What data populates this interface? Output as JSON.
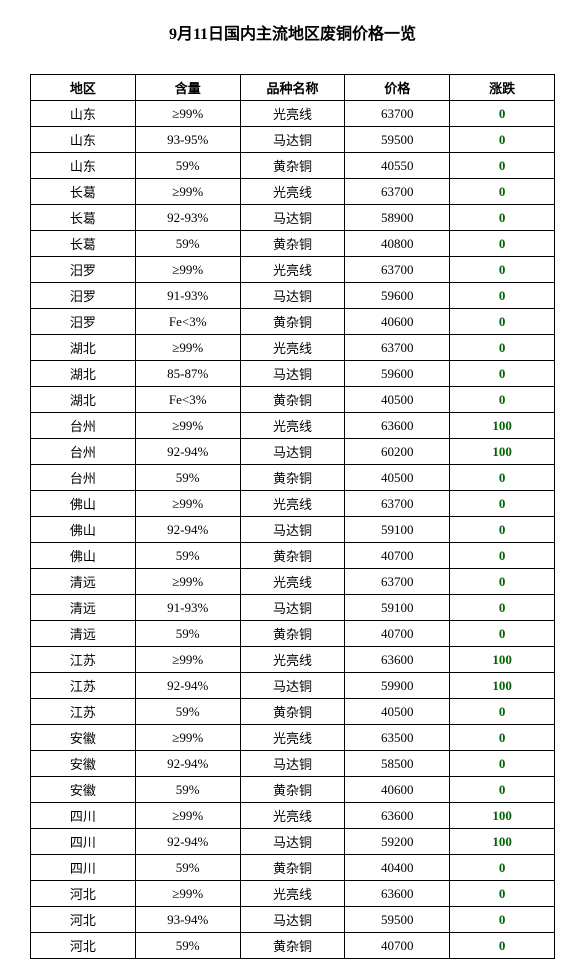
{
  "title": "9月11日国内主流地区废铜价格一览",
  "columns": [
    "地区",
    "含量",
    "品种名称",
    "价格",
    "涨跌"
  ],
  "rows": [
    [
      "山东",
      "≥99%",
      "光亮线",
      "63700",
      "0"
    ],
    [
      "山东",
      "93-95%",
      "马达铜",
      "59500",
      "0"
    ],
    [
      "山东",
      "59%",
      "黄杂铜",
      "40550",
      "0"
    ],
    [
      "长葛",
      "≥99%",
      "光亮线",
      "63700",
      "0"
    ],
    [
      "长葛",
      "92-93%",
      "马达铜",
      "58900",
      "0"
    ],
    [
      "长葛",
      "59%",
      "黄杂铜",
      "40800",
      "0"
    ],
    [
      "汨罗",
      "≥99%",
      "光亮线",
      "63700",
      "0"
    ],
    [
      "汨罗",
      "91-93%",
      "马达铜",
      "59600",
      "0"
    ],
    [
      "汨罗",
      "Fe<3%",
      "黄杂铜",
      "40600",
      "0"
    ],
    [
      "湖北",
      "≥99%",
      "光亮线",
      "63700",
      "0"
    ],
    [
      "湖北",
      "85-87%",
      "马达铜",
      "59600",
      "0"
    ],
    [
      "湖北",
      "Fe<3%",
      "黄杂铜",
      "40500",
      "0"
    ],
    [
      "台州",
      "≥99%",
      "光亮线",
      "63600",
      "100"
    ],
    [
      "台州",
      "92-94%",
      "马达铜",
      "60200",
      "100"
    ],
    [
      "台州",
      "59%",
      "黄杂铜",
      "40500",
      "0"
    ],
    [
      "佛山",
      "≥99%",
      "光亮线",
      "63700",
      "0"
    ],
    [
      "佛山",
      "92-94%",
      "马达铜",
      "59100",
      "0"
    ],
    [
      "佛山",
      "59%",
      "黄杂铜",
      "40700",
      "0"
    ],
    [
      "清远",
      "≥99%",
      "光亮线",
      "63700",
      "0"
    ],
    [
      "清远",
      "91-93%",
      "马达铜",
      "59100",
      "0"
    ],
    [
      "清远",
      "59%",
      "黄杂铜",
      "40700",
      "0"
    ],
    [
      "江苏",
      "≥99%",
      "光亮线",
      "63600",
      "100"
    ],
    [
      "江苏",
      "92-94%",
      "马达铜",
      "59900",
      "100"
    ],
    [
      "江苏",
      "59%",
      "黄杂铜",
      "40500",
      "0"
    ],
    [
      "安徽",
      "≥99%",
      "光亮线",
      "63500",
      "0"
    ],
    [
      "安徽",
      "92-94%",
      "马达铜",
      "58500",
      "0"
    ],
    [
      "安徽",
      "59%",
      "黄杂铜",
      "40600",
      "0"
    ],
    [
      "四川",
      "≥99%",
      "光亮线",
      "63600",
      "100"
    ],
    [
      "四川",
      "92-94%",
      "马达铜",
      "59200",
      "100"
    ],
    [
      "四川",
      "59%",
      "黄杂铜",
      "40400",
      "0"
    ],
    [
      "河北",
      "≥99%",
      "光亮线",
      "63600",
      "0"
    ],
    [
      "河北",
      "93-94%",
      "马达铜",
      "59500",
      "0"
    ],
    [
      "河北",
      "59%",
      "黄杂铜",
      "40700",
      "0"
    ]
  ],
  "change_color": "#006400"
}
